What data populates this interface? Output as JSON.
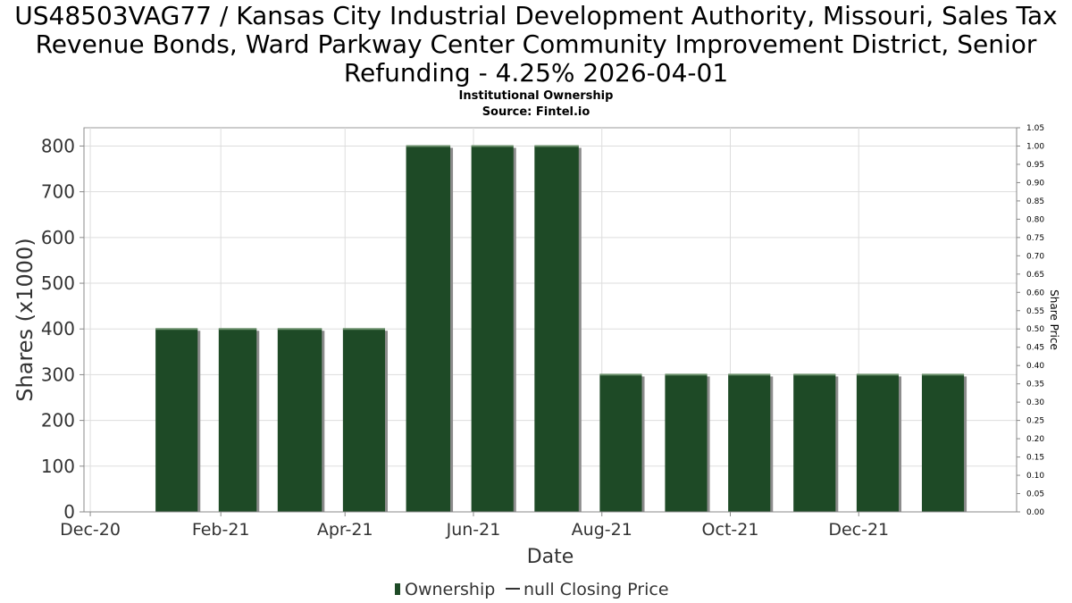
{
  "title_lines": [
    "US48503VAG77 / Kansas City Industrial Development Authority, Missouri, Sales Tax",
    "Revenue Bonds, Ward Parkway Center Community Improvement District, Senior",
    "Refunding - 4.25% 2026-04-01"
  ],
  "subtitle": "Institutional Ownership",
  "source": "Source: Fintel.io",
  "colors": {
    "bar": "#1e4a26",
    "bar_shadow": "#8c8c8c",
    "grid": "#dddddd",
    "axis": "#888888"
  },
  "chart_data": {
    "type": "bar",
    "title": "US48503VAG77 / Kansas City Industrial Development Authority, Missouri, Sales Tax Revenue Bonds, Ward Parkway Center Community Improvement District, Senior Refunding - 4.25% 2026-04-01",
    "xlabel": "Date",
    "ylabel": "Shares (x1000)",
    "y2label": "Share Price",
    "x_tick_labels": [
      "Dec-20",
      "Feb-21",
      "Apr-21",
      "Jun-21",
      "Aug-21",
      "Oct-21",
      "Dec-21"
    ],
    "x_ticks": [
      "2020-12-01",
      "2021-02-01",
      "2021-04-01",
      "2021-06-01",
      "2021-08-01",
      "2021-10-01",
      "2021-12-01"
    ],
    "xlim": [
      "2020-11-28",
      "2022-02-14"
    ],
    "ylim": [
      0,
      840
    ],
    "y_ticks": [
      0,
      100,
      200,
      300,
      400,
      500,
      600,
      700,
      800
    ],
    "y2lim": [
      0,
      1.05
    ],
    "y2_ticks": [
      "0.00",
      "0.05",
      "0.10",
      "0.15",
      "0.20",
      "0.25",
      "0.30",
      "0.35",
      "0.40",
      "0.45",
      "0.50",
      "0.55",
      "0.60",
      "0.65",
      "0.70",
      "0.75",
      "0.80",
      "0.85",
      "0.90",
      "0.95",
      "1.00",
      "1.05"
    ],
    "grid": true,
    "legend_position": "bottom",
    "series": [
      {
        "name": "Ownership",
        "bars": [
          {
            "start": "2021-01-01",
            "end": "2021-01-21",
            "value": 400
          },
          {
            "start": "2021-01-31",
            "end": "2021-02-18",
            "value": 400
          },
          {
            "start": "2021-02-28",
            "end": "2021-03-21",
            "value": 400
          },
          {
            "start": "2021-03-31",
            "end": "2021-04-20",
            "value": 400
          },
          {
            "start": "2021-04-30",
            "end": "2021-05-21",
            "value": 800
          },
          {
            "start": "2021-05-31",
            "end": "2021-06-20",
            "value": 800
          },
          {
            "start": "2021-06-30",
            "end": "2021-07-21",
            "value": 800
          },
          {
            "start": "2021-07-31",
            "end": "2021-08-20",
            "value": 300
          },
          {
            "start": "2021-08-31",
            "end": "2021-09-20",
            "value": 300
          },
          {
            "start": "2021-09-30",
            "end": "2021-10-20",
            "value": 300
          },
          {
            "start": "2021-10-31",
            "end": "2021-11-20",
            "value": 300
          },
          {
            "start": "2021-11-30",
            "end": "2021-12-20",
            "value": 300
          },
          {
            "start": "2021-12-31",
            "end": "2022-01-20",
            "value": 300
          }
        ]
      },
      {
        "name": "null Closing Price",
        "values": []
      }
    ]
  }
}
